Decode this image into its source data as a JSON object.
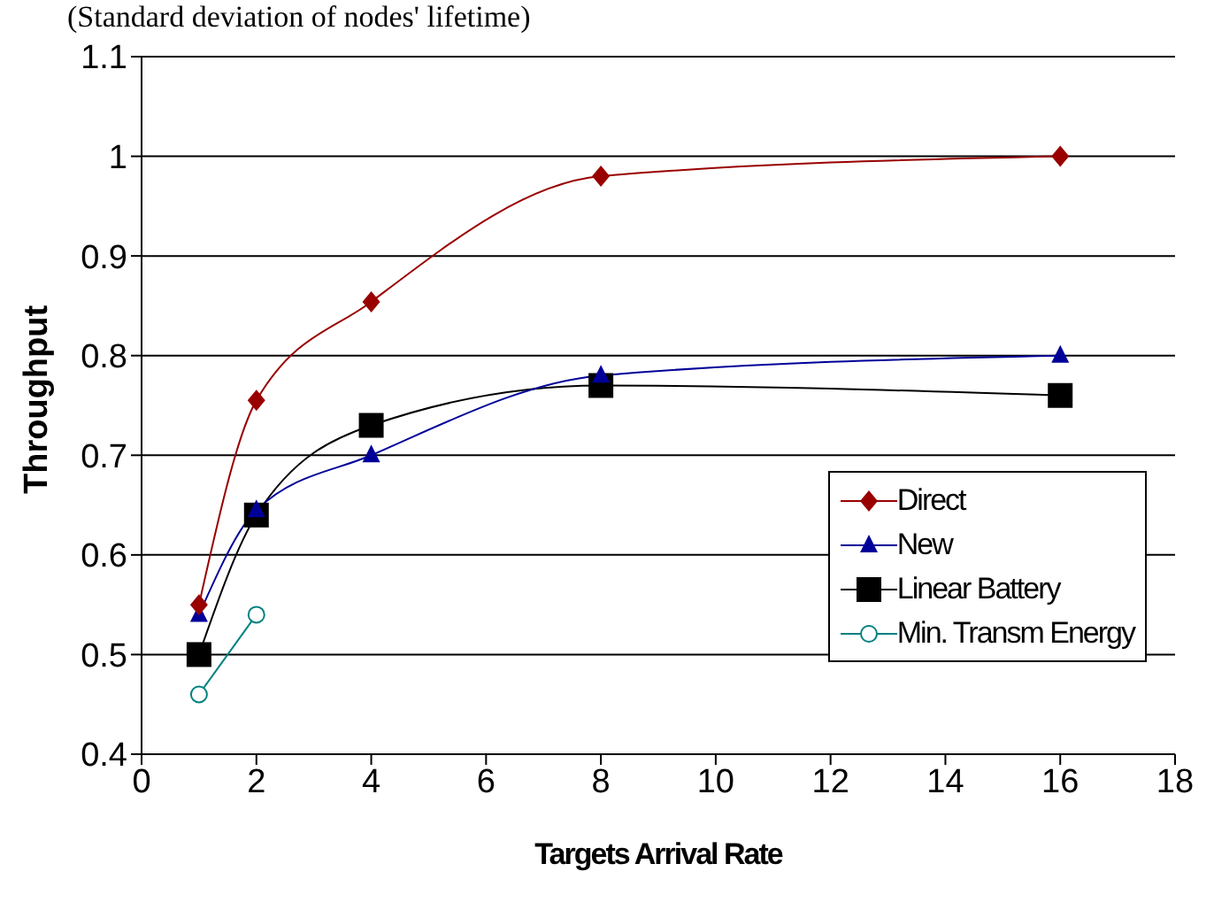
{
  "chart_data": {
    "type": "line",
    "title": "(Standard deviation of nodes' lifetime)",
    "xlabel": "Targets Arrival Rate",
    "ylabel": "Throughput",
    "xlim": [
      0,
      18
    ],
    "xticks": [
      0,
      2,
      4,
      6,
      8,
      10,
      12,
      14,
      16,
      18
    ],
    "ylim": [
      0.4,
      1.1
    ],
    "yticks": [
      0.4,
      0.5,
      0.6,
      0.7,
      0.8,
      0.9,
      1,
      1.1
    ],
    "grid": "y",
    "legend": "right",
    "line_style": "solid",
    "series": [
      {
        "name": "Direct",
        "color": "#990000",
        "marker": "diamond",
        "x": [
          1,
          2,
          4,
          8,
          16
        ],
        "values": [
          0.55,
          0.755,
          0.854,
          0.98,
          1.0
        ]
      },
      {
        "name": "New",
        "color": "#000099",
        "marker": "triangle",
        "x": [
          1,
          2,
          4,
          8,
          16
        ],
        "values": [
          0.54,
          0.645,
          0.7,
          0.78,
          0.8
        ]
      },
      {
        "name": "Linear Battery",
        "color": "#000000",
        "marker": "square",
        "x": [
          1,
          2,
          4,
          8,
          16
        ],
        "values": [
          0.5,
          0.64,
          0.73,
          0.77,
          0.76
        ]
      },
      {
        "name": "Min. Transm Energy",
        "color": "#008080",
        "marker": "circle",
        "x": [
          1,
          2
        ],
        "values": [
          0.46,
          0.54
        ]
      }
    ]
  }
}
